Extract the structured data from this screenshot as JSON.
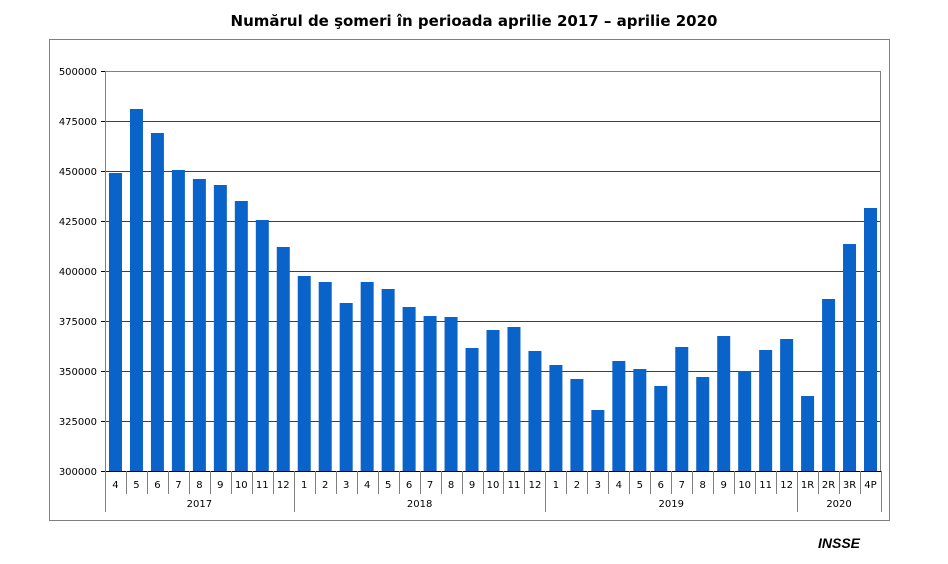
{
  "page": {
    "title": "Numărul de şomeri în perioada aprilie 2017  – aprilie 2020",
    "source": "INSSE"
  },
  "chart_data": {
    "type": "bar",
    "title": "Numărul de şomeri în perioada aprilie 2017  – aprilie 2020",
    "xlabel": "",
    "ylabel": "",
    "ylim": [
      300000,
      500000
    ],
    "yticks": [
      "300000",
      "325000",
      "350000",
      "375000",
      "400000",
      "425000",
      "450000",
      "475000",
      "500000"
    ],
    "grid": true,
    "legend": "none",
    "bar_color": "#0a63c9",
    "categories": [
      "4",
      "5",
      "6",
      "7",
      "8",
      "9",
      "10",
      "11",
      "12",
      "1",
      "2",
      "3",
      "4",
      "5",
      "6",
      "7",
      "8",
      "9",
      "10",
      "11",
      "12",
      "1",
      "2",
      "3",
      "4",
      "5",
      "6",
      "7",
      "8",
      "9",
      "10",
      "11",
      "12",
      "1R",
      "2R",
      "3R",
      "4P"
    ],
    "values": [
      449000,
      481000,
      469000,
      450500,
      446000,
      443000,
      435000,
      425500,
      412000,
      397500,
      394500,
      384000,
      394500,
      391000,
      382000,
      377500,
      377000,
      361500,
      370500,
      372000,
      360000,
      353000,
      346000,
      330500,
      355000,
      351000,
      342500,
      362000,
      347000,
      367500,
      350000,
      360500,
      366000,
      337500,
      386000,
      413500,
      431500
    ],
    "groups": [
      {
        "label": "2017",
        "count": 9
      },
      {
        "label": "2018",
        "count": 12
      },
      {
        "label": "2019",
        "count": 12
      },
      {
        "label": "2020",
        "count": 4
      }
    ]
  }
}
